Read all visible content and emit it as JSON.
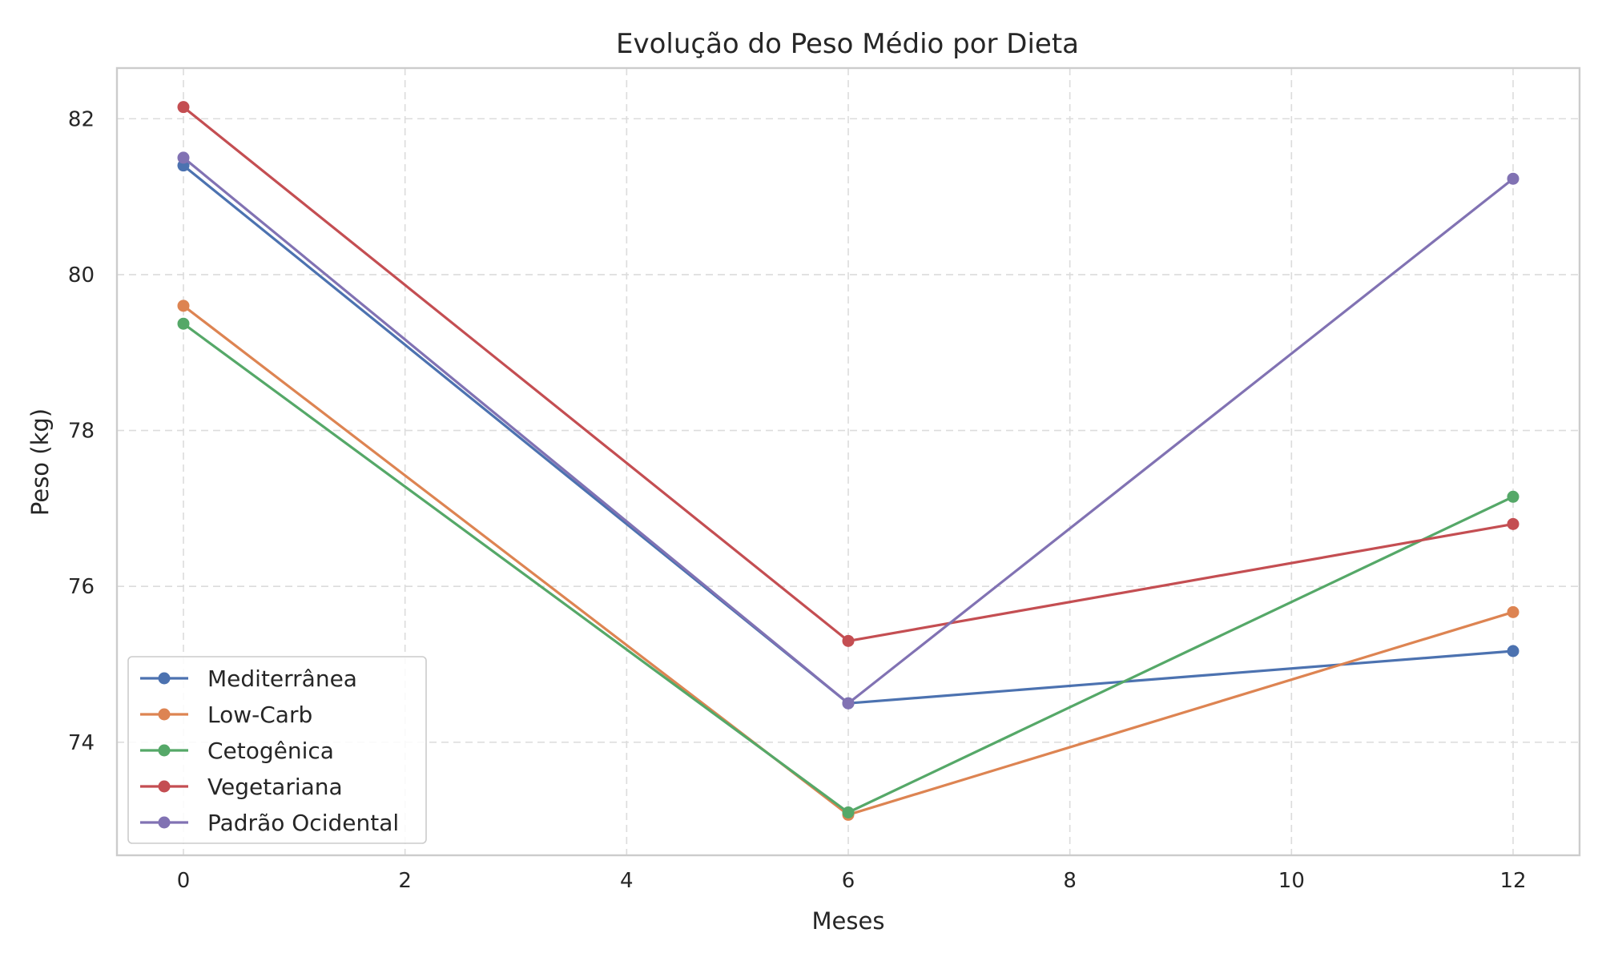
{
  "chart_data": {
    "type": "line",
    "title": "Evolução do Peso Médio por Dieta",
    "xlabel": "Meses",
    "ylabel": "Peso (kg)",
    "x": [
      0,
      6,
      12
    ],
    "xlim": [
      -0.6,
      12.6
    ],
    "ylim": [
      72.55,
      82.65
    ],
    "xticks": [
      0,
      2,
      4,
      6,
      8,
      10,
      12
    ],
    "yticks": [
      74,
      76,
      78,
      80,
      82
    ],
    "grid": true,
    "legend_position": "lower-left",
    "series": [
      {
        "name": "Mediterrânea",
        "color": "#4c72b0",
        "values": [
          81.4,
          74.5,
          75.17
        ]
      },
      {
        "name": "Low-Carb",
        "color": "#dd8452",
        "values": [
          79.6,
          73.07,
          75.67
        ]
      },
      {
        "name": "Cetogênica",
        "color": "#55a868",
        "values": [
          79.37,
          73.1,
          77.15
        ]
      },
      {
        "name": "Vegetariana",
        "color": "#c44e52",
        "values": [
          82.15,
          75.3,
          76.8
        ]
      },
      {
        "name": "Padrão Ocidental",
        "color": "#8172b3",
        "values": [
          81.5,
          74.5,
          81.23
        ]
      }
    ]
  }
}
